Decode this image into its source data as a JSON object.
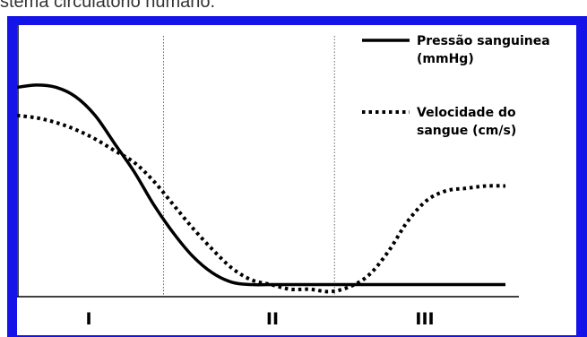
{
  "caption": "stema circulatório humano.",
  "colors": {
    "frame": "#1414e8",
    "series": "#000000",
    "divider": "#666666"
  },
  "chart_data": {
    "type": "line",
    "title": "",
    "xlabel": "",
    "ylabel": "",
    "xlim": [
      0,
      100
    ],
    "ylim": [
      0,
      100
    ],
    "grid": false,
    "legend_position": "top-right",
    "regions": [
      {
        "label": "I",
        "x_start": 0,
        "x_end": 30
      },
      {
        "label": "II",
        "x_start": 30,
        "x_end": 65
      },
      {
        "label": "III",
        "x_start": 65,
        "x_end": 100
      }
    ],
    "dividers_x": [
      30,
      65
    ],
    "series": [
      {
        "name": "Pressão sanguínea (mmHg)",
        "style": "solid",
        "x": [
          0,
          4,
          8,
          12,
          16,
          20,
          24,
          28,
          32,
          36,
          40,
          44,
          48,
          52,
          56,
          60,
          64,
          68,
          72,
          76,
          80,
          84,
          88,
          92,
          96,
          100
        ],
        "y": [
          88,
          89,
          88,
          84,
          76,
          64,
          52,
          38,
          26,
          16,
          9,
          5,
          4,
          4,
          4,
          4,
          4,
          4,
          4,
          4,
          4,
          4,
          4,
          4,
          4,
          4
        ]
      },
      {
        "name": "Velocidade do sangue (cm/s)",
        "style": "dotted",
        "x": [
          0,
          4,
          8,
          12,
          16,
          20,
          24,
          28,
          32,
          36,
          40,
          44,
          48,
          52,
          56,
          60,
          64,
          68,
          72,
          76,
          80,
          84,
          88,
          92,
          96,
          100
        ],
        "y": [
          76,
          75,
          73,
          70,
          66,
          61,
          56,
          48,
          38,
          28,
          19,
          11,
          6,
          4,
          2,
          2,
          1,
          3,
          8,
          18,
          31,
          40,
          44,
          45,
          46,
          46
        ]
      }
    ]
  }
}
